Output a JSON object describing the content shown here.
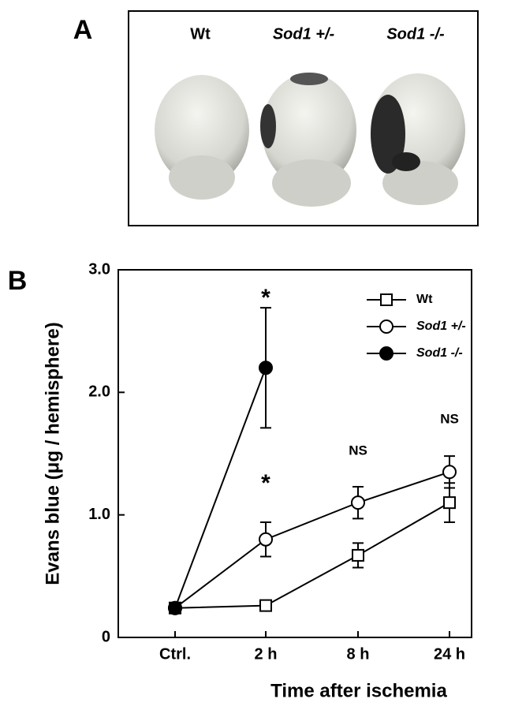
{
  "panel_a": {
    "label": "A",
    "columns": [
      "Wt",
      "Sod1 +/-",
      "Sod1 -/-"
    ]
  },
  "chart_data": {
    "type": "line",
    "panel_label": "B",
    "y_label": "Evans blue (μg / hemisphere)",
    "x_label": "Time after ischemia",
    "categories": [
      "Ctrl.",
      "2 h",
      "8 h",
      "24 h"
    ],
    "series": [
      {
        "name": "Wt",
        "color": "#000000",
        "marker": "open-square",
        "values": [
          0.24,
          0.26,
          0.67,
          1.1
        ],
        "errors": [
          0.03,
          0.02,
          0.1,
          0.16
        ]
      },
      {
        "name": "Sod1 +/-",
        "color": "#000000",
        "marker": "open-circle",
        "values": [
          0.24,
          0.8,
          1.1,
          1.35
        ],
        "errors": [
          0.03,
          0.14,
          0.13,
          0.13
        ]
      },
      {
        "name": "Sod1 -/-",
        "color": "#000000",
        "marker": "filled-circle",
        "values": [
          0.24,
          2.2,
          null,
          null
        ],
        "errors": [
          0.03,
          0.49,
          null,
          null
        ]
      }
    ],
    "annotations": [
      "*",
      "*",
      "NS",
      "NS"
    ],
    "ylim": [
      0,
      3
    ],
    "yticks": [
      0,
      {
        "value": 1,
        "label": "1.0"
      },
      {
        "value": 2,
        "label": "2.0"
      },
      {
        "value": 3,
        "label": "3.0"
      }
    ],
    "legend": "upper right"
  }
}
